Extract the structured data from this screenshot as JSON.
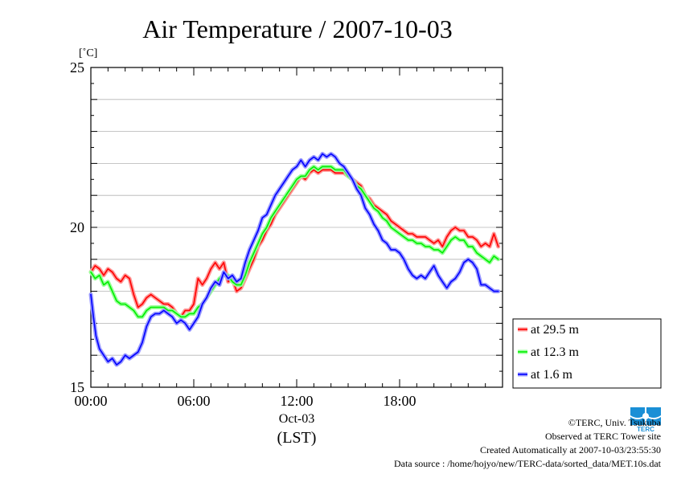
{
  "chart_data": {
    "type": "line",
    "title": "Air Temperature / 2007-10-03",
    "ylabel": "[˚C]",
    "xlabel_date": "Oct-03",
    "xlabel": "(LST)",
    "xlim": [
      0,
      24
    ],
    "ylim": [
      15,
      25
    ],
    "xticks": [
      {
        "value": 0,
        "label": "00:00"
      },
      {
        "value": 6,
        "label": "06:00"
      },
      {
        "value": 12,
        "label": "12:00"
      },
      {
        "value": 18,
        "label": "18:00"
      }
    ],
    "yticks": [
      {
        "value": 15,
        "label": "15"
      },
      {
        "value": 20,
        "label": "20"
      },
      {
        "value": 25,
        "label": "25"
      }
    ],
    "grid": true,
    "legend_position": "right",
    "series": [
      {
        "name": "at 29.5 m",
        "color": "#ff0000",
        "halo": "#ff9999",
        "points": [
          [
            0,
            18.6
          ],
          [
            0.25,
            18.8
          ],
          [
            0.5,
            18.7
          ],
          [
            0.75,
            18.5
          ],
          [
            1,
            18.7
          ],
          [
            1.25,
            18.6
          ],
          [
            1.5,
            18.4
          ],
          [
            1.75,
            18.3
          ],
          [
            2,
            18.5
          ],
          [
            2.25,
            18.4
          ],
          [
            2.5,
            17.9
          ],
          [
            2.75,
            17.5
          ],
          [
            3,
            17.6
          ],
          [
            3.25,
            17.8
          ],
          [
            3.5,
            17.9
          ],
          [
            3.75,
            17.8
          ],
          [
            4,
            17.7
          ],
          [
            4.25,
            17.6
          ],
          [
            4.5,
            17.6
          ],
          [
            4.75,
            17.5
          ],
          [
            5,
            17.3
          ],
          [
            5.25,
            17.2
          ],
          [
            5.5,
            17.4
          ],
          [
            5.75,
            17.4
          ],
          [
            6,
            17.6
          ],
          [
            6.25,
            18.4
          ],
          [
            6.5,
            18.2
          ],
          [
            6.75,
            18.4
          ],
          [
            7,
            18.7
          ],
          [
            7.25,
            18.9
          ],
          [
            7.5,
            18.7
          ],
          [
            7.75,
            18.9
          ],
          [
            8,
            18.3
          ],
          [
            8.25,
            18.4
          ],
          [
            8.5,
            18.0
          ],
          [
            8.75,
            18.1
          ],
          [
            9,
            18.4
          ],
          [
            9.25,
            18.7
          ],
          [
            9.5,
            19.0
          ],
          [
            9.75,
            19.4
          ],
          [
            10,
            19.6
          ],
          [
            10.25,
            19.9
          ],
          [
            10.5,
            20.1
          ],
          [
            10.75,
            20.4
          ],
          [
            11,
            20.6
          ],
          [
            11.25,
            20.8
          ],
          [
            11.5,
            21.0
          ],
          [
            11.75,
            21.2
          ],
          [
            12,
            21.4
          ],
          [
            12.25,
            21.6
          ],
          [
            12.5,
            21.5
          ],
          [
            12.75,
            21.7
          ],
          [
            13,
            21.8
          ],
          [
            13.25,
            21.7
          ],
          [
            13.5,
            21.8
          ],
          [
            13.75,
            21.8
          ],
          [
            14,
            21.8
          ],
          [
            14.25,
            21.7
          ],
          [
            14.5,
            21.7
          ],
          [
            14.75,
            21.7
          ],
          [
            15,
            21.6
          ],
          [
            15.25,
            21.5
          ],
          [
            15.5,
            21.4
          ],
          [
            15.75,
            21.3
          ],
          [
            16,
            21.0
          ],
          [
            16.25,
            20.9
          ],
          [
            16.5,
            20.7
          ],
          [
            16.75,
            20.6
          ],
          [
            17,
            20.5
          ],
          [
            17.25,
            20.4
          ],
          [
            17.5,
            20.2
          ],
          [
            17.75,
            20.1
          ],
          [
            18,
            20.0
          ],
          [
            18.25,
            19.9
          ],
          [
            18.5,
            19.8
          ],
          [
            18.75,
            19.8
          ],
          [
            19,
            19.7
          ],
          [
            19.25,
            19.7
          ],
          [
            19.5,
            19.7
          ],
          [
            19.75,
            19.6
          ],
          [
            20,
            19.5
          ],
          [
            20.25,
            19.6
          ],
          [
            20.5,
            19.4
          ],
          [
            20.75,
            19.7
          ],
          [
            21,
            19.9
          ],
          [
            21.25,
            20.0
          ],
          [
            21.5,
            19.9
          ],
          [
            21.75,
            19.9
          ],
          [
            22,
            19.7
          ],
          [
            22.25,
            19.7
          ],
          [
            22.5,
            19.6
          ],
          [
            22.75,
            19.4
          ],
          [
            23,
            19.5
          ],
          [
            23.25,
            19.4
          ],
          [
            23.5,
            19.8
          ],
          [
            23.75,
            19.4
          ]
        ]
      },
      {
        "name": "at 12.3 m",
        "color": "#00ee00",
        "halo": "#99ff99",
        "points": [
          [
            0,
            18.6
          ],
          [
            0.25,
            18.4
          ],
          [
            0.5,
            18.5
          ],
          [
            0.75,
            18.2
          ],
          [
            1,
            18.3
          ],
          [
            1.25,
            18.0
          ],
          [
            1.5,
            17.7
          ],
          [
            1.75,
            17.6
          ],
          [
            2,
            17.6
          ],
          [
            2.25,
            17.5
          ],
          [
            2.5,
            17.4
          ],
          [
            2.75,
            17.2
          ],
          [
            3,
            17.2
          ],
          [
            3.25,
            17.4
          ],
          [
            3.5,
            17.5
          ],
          [
            3.75,
            17.5
          ],
          [
            4,
            17.5
          ],
          [
            4.25,
            17.5
          ],
          [
            4.5,
            17.4
          ],
          [
            4.75,
            17.4
          ],
          [
            5,
            17.3
          ],
          [
            5.25,
            17.2
          ],
          [
            5.5,
            17.2
          ],
          [
            5.75,
            17.3
          ],
          [
            6,
            17.3
          ],
          [
            6.25,
            17.5
          ],
          [
            6.5,
            17.6
          ],
          [
            6.75,
            17.8
          ],
          [
            7,
            18.0
          ],
          [
            7.25,
            18.2
          ],
          [
            7.5,
            18.4
          ],
          [
            7.75,
            18.5
          ],
          [
            8,
            18.5
          ],
          [
            8.25,
            18.3
          ],
          [
            8.5,
            18.2
          ],
          [
            8.75,
            18.2
          ],
          [
            9,
            18.5
          ],
          [
            9.25,
            18.9
          ],
          [
            9.5,
            19.2
          ],
          [
            9.75,
            19.5
          ],
          [
            10,
            19.8
          ],
          [
            10.25,
            20.0
          ],
          [
            10.5,
            20.3
          ],
          [
            10.75,
            20.5
          ],
          [
            11,
            20.7
          ],
          [
            11.25,
            20.9
          ],
          [
            11.5,
            21.1
          ],
          [
            11.75,
            21.3
          ],
          [
            12,
            21.5
          ],
          [
            12.25,
            21.6
          ],
          [
            12.5,
            21.6
          ],
          [
            12.75,
            21.8
          ],
          [
            13,
            21.9
          ],
          [
            13.25,
            21.8
          ],
          [
            13.5,
            21.9
          ],
          [
            13.75,
            21.9
          ],
          [
            14,
            21.9
          ],
          [
            14.25,
            21.8
          ],
          [
            14.5,
            21.8
          ],
          [
            14.75,
            21.8
          ],
          [
            15,
            21.6
          ],
          [
            15.25,
            21.5
          ],
          [
            15.5,
            21.3
          ],
          [
            15.75,
            21.2
          ],
          [
            16,
            21.0
          ],
          [
            16.25,
            20.8
          ],
          [
            16.5,
            20.6
          ],
          [
            16.75,
            20.5
          ],
          [
            17,
            20.3
          ],
          [
            17.25,
            20.2
          ],
          [
            17.5,
            20.0
          ],
          [
            17.75,
            19.9
          ],
          [
            18,
            19.8
          ],
          [
            18.25,
            19.7
          ],
          [
            18.5,
            19.6
          ],
          [
            18.75,
            19.6
          ],
          [
            19,
            19.5
          ],
          [
            19.25,
            19.5
          ],
          [
            19.5,
            19.4
          ],
          [
            19.75,
            19.4
          ],
          [
            20,
            19.3
          ],
          [
            20.25,
            19.3
          ],
          [
            20.5,
            19.2
          ],
          [
            20.75,
            19.4
          ],
          [
            21,
            19.6
          ],
          [
            21.25,
            19.7
          ],
          [
            21.5,
            19.6
          ],
          [
            21.75,
            19.6
          ],
          [
            22,
            19.4
          ],
          [
            22.25,
            19.4
          ],
          [
            22.5,
            19.2
          ],
          [
            22.75,
            19.1
          ],
          [
            23,
            19.0
          ],
          [
            23.25,
            18.9
          ],
          [
            23.5,
            19.1
          ],
          [
            23.75,
            19.0
          ]
        ]
      },
      {
        "name": "at 1.6 m",
        "color": "#0000ff",
        "halo": "#9999ff",
        "points": [
          [
            0,
            17.9
          ],
          [
            0.15,
            17.2
          ],
          [
            0.3,
            16.6
          ],
          [
            0.5,
            16.2
          ],
          [
            0.75,
            16.0
          ],
          [
            1,
            15.8
          ],
          [
            1.25,
            15.9
          ],
          [
            1.5,
            15.7
          ],
          [
            1.75,
            15.8
          ],
          [
            2,
            16.0
          ],
          [
            2.25,
            15.9
          ],
          [
            2.5,
            16.0
          ],
          [
            2.75,
            16.1
          ],
          [
            3,
            16.4
          ],
          [
            3.25,
            16.9
          ],
          [
            3.5,
            17.2
          ],
          [
            3.75,
            17.3
          ],
          [
            4,
            17.3
          ],
          [
            4.25,
            17.4
          ],
          [
            4.5,
            17.3
          ],
          [
            4.75,
            17.2
          ],
          [
            5,
            17.0
          ],
          [
            5.25,
            17.1
          ],
          [
            5.5,
            17.0
          ],
          [
            5.75,
            16.8
          ],
          [
            6,
            17.0
          ],
          [
            6.25,
            17.2
          ],
          [
            6.5,
            17.6
          ],
          [
            6.75,
            17.8
          ],
          [
            7,
            18.1
          ],
          [
            7.25,
            18.3
          ],
          [
            7.5,
            18.2
          ],
          [
            7.75,
            18.6
          ],
          [
            8,
            18.4
          ],
          [
            8.25,
            18.5
          ],
          [
            8.5,
            18.3
          ],
          [
            8.75,
            18.4
          ],
          [
            9,
            18.9
          ],
          [
            9.25,
            19.3
          ],
          [
            9.5,
            19.6
          ],
          [
            9.75,
            19.9
          ],
          [
            10,
            20.3
          ],
          [
            10.25,
            20.4
          ],
          [
            10.5,
            20.7
          ],
          [
            10.75,
            21.0
          ],
          [
            11,
            21.2
          ],
          [
            11.25,
            21.4
          ],
          [
            11.5,
            21.6
          ],
          [
            11.75,
            21.8
          ],
          [
            12,
            21.9
          ],
          [
            12.25,
            22.1
          ],
          [
            12.5,
            21.9
          ],
          [
            12.75,
            22.1
          ],
          [
            13,
            22.2
          ],
          [
            13.25,
            22.1
          ],
          [
            13.5,
            22.3
          ],
          [
            13.75,
            22.2
          ],
          [
            14,
            22.3
          ],
          [
            14.25,
            22.2
          ],
          [
            14.5,
            22.0
          ],
          [
            14.75,
            21.9
          ],
          [
            15,
            21.7
          ],
          [
            15.25,
            21.5
          ],
          [
            15.5,
            21.2
          ],
          [
            15.75,
            21.0
          ],
          [
            16,
            20.6
          ],
          [
            16.25,
            20.4
          ],
          [
            16.5,
            20.1
          ],
          [
            16.75,
            19.9
          ],
          [
            17,
            19.6
          ],
          [
            17.25,
            19.5
          ],
          [
            17.5,
            19.3
          ],
          [
            17.75,
            19.3
          ],
          [
            18,
            19.2
          ],
          [
            18.25,
            19.0
          ],
          [
            18.5,
            18.7
          ],
          [
            18.75,
            18.5
          ],
          [
            19,
            18.4
          ],
          [
            19.25,
            18.5
          ],
          [
            19.5,
            18.4
          ],
          [
            19.75,
            18.6
          ],
          [
            20,
            18.8
          ],
          [
            20.25,
            18.5
          ],
          [
            20.5,
            18.3
          ],
          [
            20.75,
            18.1
          ],
          [
            21,
            18.3
          ],
          [
            21.25,
            18.4
          ],
          [
            21.5,
            18.6
          ],
          [
            21.75,
            18.9
          ],
          [
            22,
            19.0
          ],
          [
            22.25,
            18.9
          ],
          [
            22.5,
            18.7
          ],
          [
            22.75,
            18.2
          ],
          [
            23,
            18.2
          ],
          [
            23.25,
            18.1
          ],
          [
            23.5,
            18.0
          ],
          [
            23.75,
            18.0
          ]
        ]
      }
    ]
  },
  "credits": {
    "copyright": "©TERC, Univ. Tsukuba",
    "site": "Observed at TERC Tower site",
    "created": "Created Automatically at 2007-10-03/23:55:30",
    "source": "Data source : /home/hojyo/new/TERC-data/sorted_data/MET.10s.dat"
  },
  "logo": {
    "label": "TERC",
    "color": "#1a8fd6"
  }
}
